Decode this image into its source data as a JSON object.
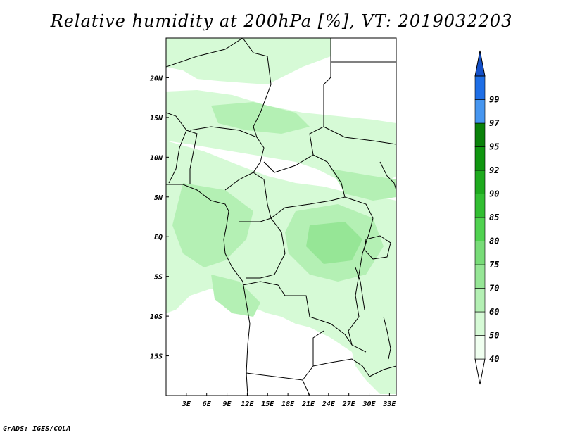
{
  "title": "Relative humidity at 200hPa [%], VT: 2019032203",
  "footer": "GrADS: IGES/COLA",
  "map": {
    "lon_range": [
      0,
      34
    ],
    "lat_range": [
      -20,
      25
    ],
    "lat_ticks": [
      {
        "value": 20,
        "label": "20N"
      },
      {
        "value": 15,
        "label": "15N"
      },
      {
        "value": 10,
        "label": "10N"
      },
      {
        "value": 5,
        "label": "5N"
      },
      {
        "value": 0,
        "label": "EQ"
      },
      {
        "value": -5,
        "label": "5S"
      },
      {
        "value": -10,
        "label": "10S"
      },
      {
        "value": -15,
        "label": "15S"
      }
    ],
    "lon_ticks": [
      {
        "value": 3,
        "label": "3E"
      },
      {
        "value": 6,
        "label": "6E"
      },
      {
        "value": 9,
        "label": "9E"
      },
      {
        "value": 12,
        "label": "12E"
      },
      {
        "value": 15,
        "label": "15E"
      },
      {
        "value": 18,
        "label": "18E"
      },
      {
        "value": 21,
        "label": "21E"
      },
      {
        "value": 24,
        "label": "24E"
      },
      {
        "value": 27,
        "label": "27E"
      },
      {
        "value": 30,
        "label": "30E"
      },
      {
        "value": 33,
        "label": "33E"
      }
    ]
  },
  "colorbar": {
    "levels": [
      {
        "label": "40",
        "color": "#f0fff0"
      },
      {
        "label": "50",
        "color": "#d6fad6"
      },
      {
        "label": "60",
        "color": "#b4f0b4"
      },
      {
        "label": "70",
        "color": "#96e696"
      },
      {
        "label": "75",
        "color": "#78dc78"
      },
      {
        "label": "80",
        "color": "#50d250"
      },
      {
        "label": "85",
        "color": "#32be32"
      },
      {
        "label": "90",
        "color": "#1eaa1e"
      },
      {
        "label": "92",
        "color": "#109610"
      },
      {
        "label": "95",
        "color": "#0a820a"
      },
      {
        "label": "97",
        "color": "#4696f0"
      },
      {
        "label": "99",
        "color": "#1e6ee6"
      }
    ],
    "over_color": "#1450c8"
  }
}
